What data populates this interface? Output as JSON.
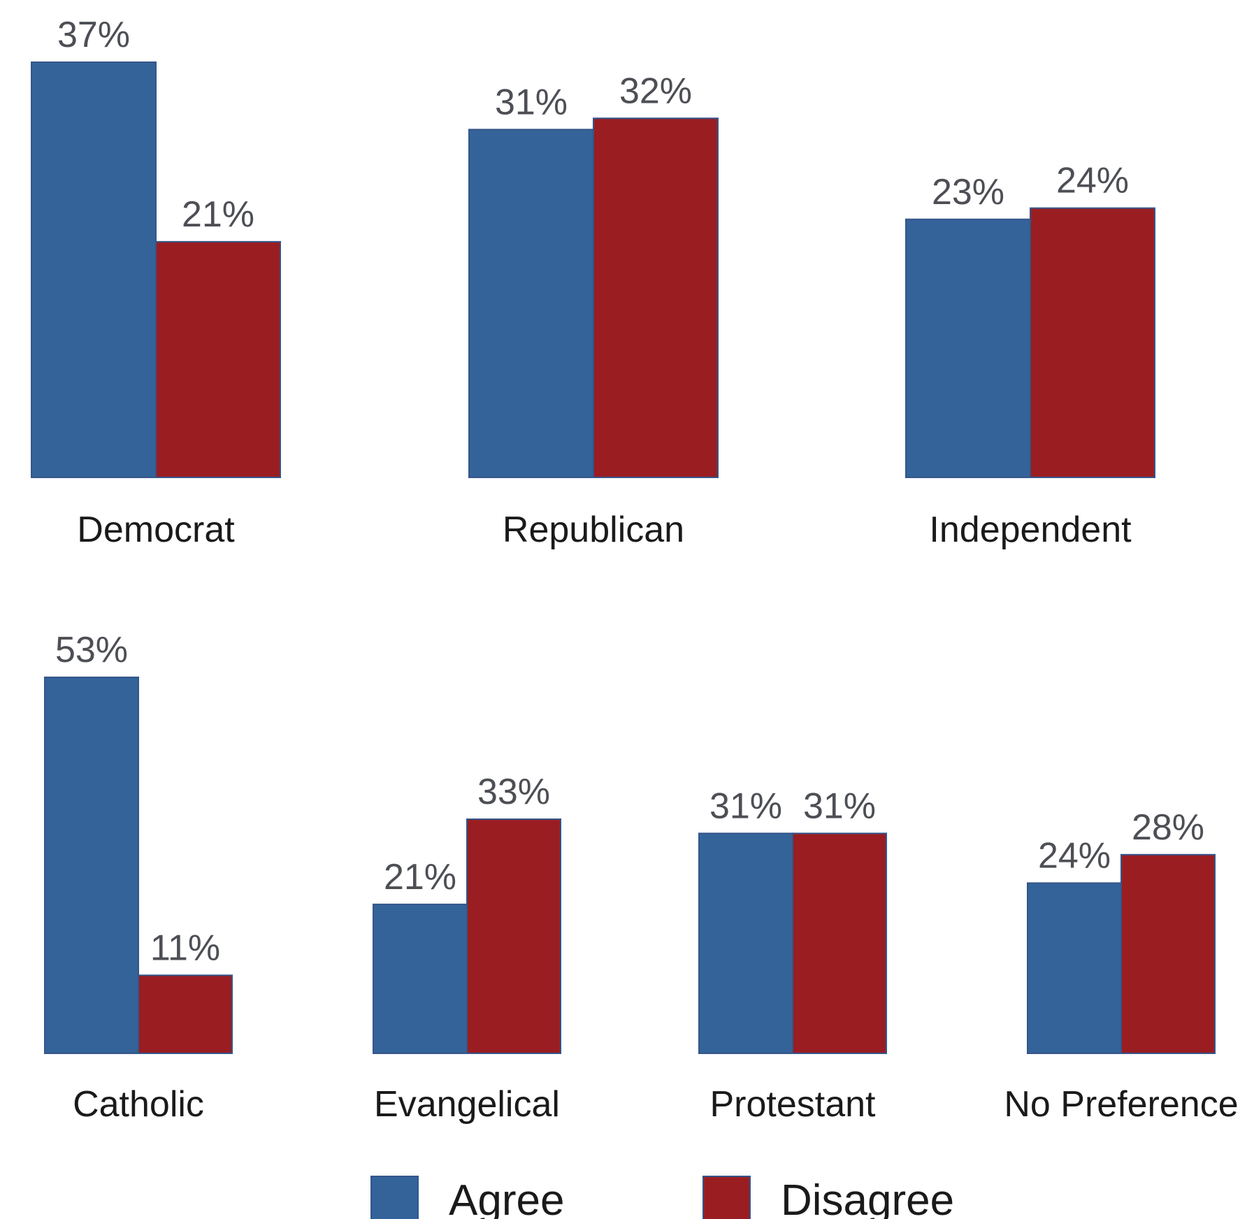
{
  "chart_data": [
    {
      "type": "bar",
      "categories": [
        "Democrat",
        "Republican",
        "Independent"
      ],
      "series": [
        {
          "name": "Agree",
          "values": [
            37,
            31,
            23
          ],
          "labels": [
            "37%",
            "31%",
            "23%"
          ]
        },
        {
          "name": "Disagree",
          "values": [
            21,
            32,
            24
          ],
          "labels": [
            "21%",
            "32%",
            "24%"
          ]
        }
      ],
      "ylim": [
        0,
        37
      ],
      "grid": false
    },
    {
      "type": "bar",
      "categories": [
        "Catholic",
        "Evangelical",
        "Protestant",
        "No Preference"
      ],
      "series": [
        {
          "name": "Agree",
          "values": [
            53,
            21,
            31,
            24
          ],
          "labels": [
            "53%",
            "21%",
            "31%",
            "24%"
          ]
        },
        {
          "name": "Disagree",
          "values": [
            11,
            33,
            31,
            28
          ],
          "labels": [
            "11%",
            "33%",
            "31%",
            "28%"
          ]
        }
      ],
      "ylim": [
        0,
        53
      ],
      "grid": false
    }
  ],
  "legend": {
    "placement": "bottom-center",
    "items": [
      {
        "label": "Agree",
        "color": "#336399"
      },
      {
        "label": "Disagree",
        "color": "#9a1d21"
      }
    ]
  },
  "colors": {
    "agree": "#336399",
    "disagree": "#9a1d21",
    "bar_border": "#35558a"
  }
}
